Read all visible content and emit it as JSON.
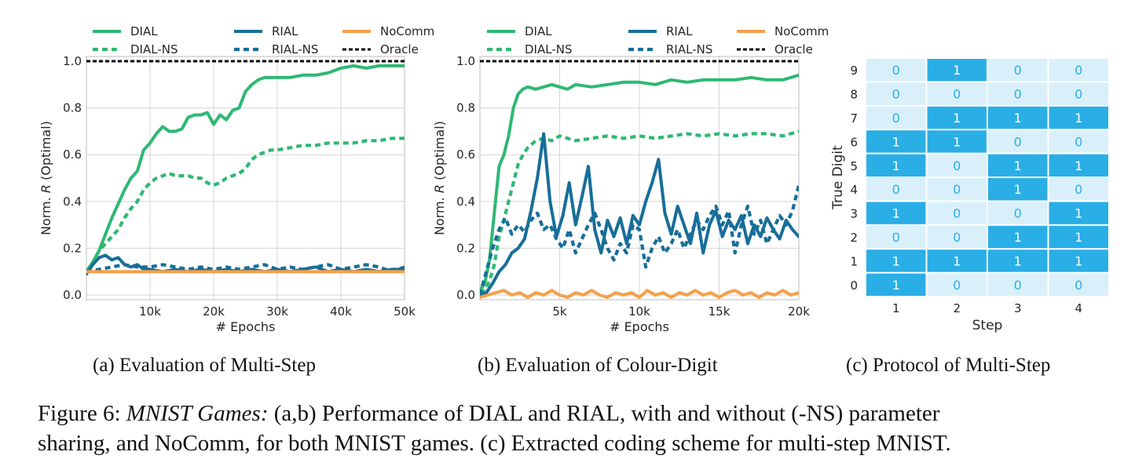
{
  "figure_caption": {
    "label": "Figure 6: ",
    "italic": "MNIST Games:",
    "line1_rest": " (a,b) Performance of DIAL and RIAL, with and without (-NS) parameter",
    "line2": "sharing, and NoComm, for both MNIST games. (c) Extracted coding scheme for multi-step MNIST."
  },
  "colors": {
    "DIAL": "#2eb873",
    "DIAL-NS": "#2eb873",
    "RIAL": "#176e99",
    "RIAL-NS": "#176e99",
    "NoComm": "#f5a04a",
    "Oracle": "#000000",
    "cell_on": "#2aaee6",
    "cell_off": "#d9f0fa",
    "grid": "#d5d5d5"
  },
  "legend_labels": [
    "DIAL",
    "RIAL",
    "NoComm",
    "DIAL-NS",
    "RIAL-NS",
    "Oracle"
  ],
  "chart_data": [
    {
      "id": "a",
      "type": "line",
      "caption": "(a) Evaluation of Multi-Step",
      "xlabel": "# Epochs",
      "ylabel": "Norm. R (Optimal)",
      "xlim": [
        0,
        50000
      ],
      "ylim": [
        -0.02,
        1.02
      ],
      "xticks": [
        10000,
        20000,
        30000,
        40000,
        50000
      ],
      "xtick_labels": [
        "10k",
        "20k",
        "30k",
        "40k",
        "50k"
      ],
      "yticks": [
        0.0,
        0.2,
        0.4,
        0.6,
        0.8,
        1.0
      ],
      "ytick_labels": [
        "0.0",
        "0.2",
        "0.4",
        "0.6",
        "0.8",
        "1.0"
      ],
      "grid": true,
      "legend_placement": "top",
      "series": [
        {
          "name": "DIAL",
          "style": "solid",
          "x": [
            0,
            1000,
            2000,
            3000,
            4000,
            5000,
            6000,
            7000,
            8000,
            9000,
            10000,
            11000,
            12000,
            13000,
            14000,
            15000,
            16000,
            17000,
            18000,
            19000,
            20000,
            21000,
            22000,
            23000,
            24000,
            25000,
            26000,
            27000,
            28000,
            29000,
            30000,
            32000,
            34000,
            36000,
            38000,
            40000,
            42000,
            44000,
            46000,
            48000,
            50000
          ],
          "y": [
            0.1,
            0.14,
            0.19,
            0.26,
            0.33,
            0.39,
            0.45,
            0.5,
            0.53,
            0.62,
            0.65,
            0.69,
            0.72,
            0.7,
            0.7,
            0.71,
            0.76,
            0.77,
            0.77,
            0.78,
            0.73,
            0.77,
            0.75,
            0.79,
            0.8,
            0.87,
            0.9,
            0.92,
            0.93,
            0.93,
            0.93,
            0.93,
            0.94,
            0.94,
            0.95,
            0.97,
            0.98,
            0.97,
            0.98,
            0.98,
            0.98
          ]
        },
        {
          "name": "DIAL-NS",
          "style": "dotted",
          "x": [
            0,
            1000,
            2000,
            3000,
            4000,
            5000,
            6000,
            7000,
            8000,
            9000,
            10000,
            11000,
            12000,
            13000,
            14000,
            15000,
            16000,
            17000,
            18000,
            19000,
            20000,
            21000,
            22000,
            23000,
            24000,
            25000,
            26000,
            27000,
            28000,
            29000,
            30000,
            32000,
            34000,
            36000,
            38000,
            40000,
            42000,
            44000,
            46000,
            48000,
            50000
          ],
          "y": [
            0.1,
            0.14,
            0.19,
            0.22,
            0.25,
            0.28,
            0.33,
            0.37,
            0.4,
            0.45,
            0.48,
            0.5,
            0.51,
            0.52,
            0.51,
            0.51,
            0.51,
            0.5,
            0.5,
            0.48,
            0.47,
            0.48,
            0.5,
            0.51,
            0.52,
            0.54,
            0.58,
            0.6,
            0.61,
            0.62,
            0.62,
            0.63,
            0.64,
            0.64,
            0.65,
            0.65,
            0.65,
            0.66,
            0.66,
            0.67,
            0.67
          ]
        },
        {
          "name": "RIAL",
          "style": "solid",
          "x": [
            0,
            1000,
            2000,
            3000,
            4000,
            5000,
            6000,
            7000,
            8000,
            9000,
            10000,
            12000,
            14000,
            16000,
            18000,
            20000,
            22000,
            24000,
            26000,
            28000,
            30000,
            32000,
            34000,
            36000,
            38000,
            40000,
            42000,
            44000,
            46000,
            48000,
            50000
          ],
          "y": [
            0.09,
            0.13,
            0.16,
            0.17,
            0.15,
            0.16,
            0.13,
            0.12,
            0.13,
            0.11,
            0.11,
            0.1,
            0.11,
            0.1,
            0.11,
            0.1,
            0.11,
            0.1,
            0.11,
            0.1,
            0.11,
            0.1,
            0.11,
            0.12,
            0.1,
            0.11,
            0.1,
            0.11,
            0.1,
            0.11,
            0.11
          ]
        },
        {
          "name": "RIAL-NS",
          "style": "dotted",
          "x": [
            0,
            2000,
            4000,
            6000,
            8000,
            10000,
            12000,
            14000,
            16000,
            18000,
            20000,
            22000,
            24000,
            26000,
            28000,
            30000,
            32000,
            34000,
            36000,
            38000,
            40000,
            42000,
            44000,
            46000,
            48000,
            50000
          ],
          "y": [
            0.1,
            0.11,
            0.12,
            0.13,
            0.12,
            0.12,
            0.13,
            0.12,
            0.11,
            0.12,
            0.11,
            0.12,
            0.11,
            0.12,
            0.13,
            0.11,
            0.12,
            0.11,
            0.12,
            0.13,
            0.11,
            0.12,
            0.13,
            0.12,
            0.1,
            0.12
          ]
        },
        {
          "name": "NoComm",
          "style": "solid",
          "x": [
            0,
            5000,
            10000,
            15000,
            20000,
            25000,
            30000,
            35000,
            40000,
            45000,
            50000
          ],
          "y": [
            0.1,
            0.1,
            0.1,
            0.1,
            0.1,
            0.1,
            0.1,
            0.1,
            0.1,
            0.1,
            0.1
          ]
        },
        {
          "name": "Oracle",
          "style": "dashed",
          "x": [
            0,
            50000
          ],
          "y": [
            1.0,
            1.0
          ]
        }
      ]
    },
    {
      "id": "b",
      "type": "line",
      "caption": "(b) Evaluation of Colour-Digit",
      "xlabel": "# Epochs",
      "ylabel": "Norm. R (Optimal)",
      "xlim": [
        0,
        20000
      ],
      "ylim": [
        -0.02,
        1.02
      ],
      "xticks": [
        5000,
        10000,
        15000,
        20000
      ],
      "xtick_labels": [
        "5k",
        "10k",
        "15k",
        "20k"
      ],
      "yticks": [
        0.0,
        0.2,
        0.4,
        0.6,
        0.8,
        1.0
      ],
      "ytick_labels": [
        "0.0",
        "0.2",
        "0.4",
        "0.6",
        "0.8",
        "1.0"
      ],
      "grid": true,
      "legend_placement": "top",
      "series": [
        {
          "name": "DIAL",
          "style": "solid",
          "x": [
            0,
            300,
            600,
            900,
            1200,
            1500,
            1800,
            2100,
            2400,
            2700,
            3000,
            3500,
            4000,
            4500,
            5000,
            5500,
            6000,
            7000,
            8000,
            9000,
            10000,
            11000,
            12000,
            13000,
            14000,
            15000,
            16000,
            17000,
            18000,
            19000,
            20000
          ],
          "y": [
            0.02,
            0.05,
            0.15,
            0.35,
            0.55,
            0.6,
            0.68,
            0.8,
            0.86,
            0.88,
            0.89,
            0.88,
            0.89,
            0.9,
            0.89,
            0.88,
            0.9,
            0.89,
            0.9,
            0.91,
            0.91,
            0.9,
            0.92,
            0.91,
            0.92,
            0.92,
            0.92,
            0.93,
            0.92,
            0.92,
            0.94
          ]
        },
        {
          "name": "DIAL-NS",
          "style": "dotted",
          "x": [
            0,
            300,
            600,
            900,
            1200,
            1500,
            1800,
            2100,
            2400,
            2700,
            3000,
            3500,
            4000,
            4500,
            5000,
            6000,
            7000,
            8000,
            9000,
            10000,
            11000,
            12000,
            13000,
            14000,
            15000,
            16000,
            17000,
            18000,
            19000,
            20000
          ],
          "y": [
            0.01,
            0.02,
            0.06,
            0.13,
            0.25,
            0.32,
            0.4,
            0.48,
            0.56,
            0.6,
            0.63,
            0.66,
            0.67,
            0.66,
            0.68,
            0.66,
            0.67,
            0.68,
            0.67,
            0.68,
            0.67,
            0.68,
            0.69,
            0.68,
            0.69,
            0.68,
            0.69,
            0.69,
            0.68,
            0.7
          ]
        },
        {
          "name": "RIAL",
          "style": "solid",
          "x": [
            0,
            400,
            800,
            1200,
            1600,
            2000,
            2400,
            2800,
            3200,
            3600,
            4000,
            4400,
            4800,
            5200,
            5600,
            6000,
            6400,
            6800,
            7200,
            7600,
            8000,
            8400,
            8800,
            9200,
            9600,
            10000,
            10400,
            10800,
            11200,
            11600,
            12000,
            12400,
            12800,
            13200,
            13600,
            14000,
            14400,
            14800,
            15200,
            15600,
            16000,
            16400,
            16800,
            17200,
            17600,
            18000,
            18400,
            18800,
            19200,
            19600,
            20000
          ],
          "y": [
            0.0,
            0.01,
            0.05,
            0.1,
            0.13,
            0.18,
            0.2,
            0.24,
            0.36,
            0.5,
            0.69,
            0.4,
            0.25,
            0.34,
            0.48,
            0.3,
            0.42,
            0.55,
            0.28,
            0.18,
            0.32,
            0.25,
            0.33,
            0.22,
            0.34,
            0.3,
            0.4,
            0.48,
            0.58,
            0.35,
            0.26,
            0.38,
            0.3,
            0.22,
            0.35,
            0.18,
            0.3,
            0.36,
            0.25,
            0.32,
            0.28,
            0.34,
            0.22,
            0.3,
            0.25,
            0.33,
            0.28,
            0.24,
            0.32,
            0.28,
            0.25
          ]
        },
        {
          "name": "RIAL-NS",
          "style": "dotted",
          "x": [
            0,
            400,
            800,
            1200,
            1600,
            2000,
            2400,
            2800,
            3200,
            3600,
            4000,
            4400,
            4800,
            5200,
            5600,
            6000,
            6400,
            6800,
            7200,
            7600,
            8000,
            8400,
            8800,
            9200,
            9600,
            10000,
            10400,
            10800,
            11200,
            11600,
            12000,
            12400,
            12800,
            13200,
            13600,
            14000,
            14400,
            14800,
            15200,
            15600,
            16000,
            16400,
            16800,
            17200,
            17600,
            18000,
            18400,
            18800,
            19200,
            19600,
            20000
          ],
          "y": [
            0.0,
            0.1,
            0.2,
            0.28,
            0.33,
            0.26,
            0.3,
            0.27,
            0.32,
            0.35,
            0.28,
            0.3,
            0.24,
            0.2,
            0.28,
            0.18,
            0.24,
            0.3,
            0.35,
            0.28,
            0.2,
            0.15,
            0.22,
            0.18,
            0.3,
            0.28,
            0.12,
            0.2,
            0.25,
            0.18,
            0.22,
            0.28,
            0.2,
            0.26,
            0.32,
            0.28,
            0.34,
            0.38,
            0.3,
            0.36,
            0.18,
            0.3,
            0.38,
            0.26,
            0.32,
            0.22,
            0.28,
            0.34,
            0.3,
            0.36,
            0.47
          ]
        },
        {
          "name": "NoComm",
          "style": "solid",
          "x": [
            0,
            500,
            1000,
            1500,
            2000,
            2500,
            3000,
            3500,
            4000,
            4500,
            5000,
            5500,
            6000,
            6500,
            7000,
            7500,
            8000,
            8500,
            9000,
            9500,
            10000,
            10500,
            11000,
            11500,
            12000,
            12500,
            13000,
            13500,
            14000,
            14500,
            15000,
            15500,
            16000,
            16500,
            17000,
            17500,
            18000,
            18500,
            19000,
            19500,
            20000
          ],
          "y": [
            -0.01,
            0.0,
            0.01,
            0.02,
            0.0,
            0.01,
            -0.01,
            0.01,
            0.0,
            0.02,
            0.0,
            -0.01,
            0.01,
            0.0,
            0.02,
            0.0,
            -0.01,
            0.01,
            0.0,
            0.01,
            -0.01,
            0.02,
            0.0,
            0.01,
            -0.01,
            0.01,
            0.0,
            0.02,
            0.0,
            0.01,
            -0.01,
            0.01,
            0.02,
            0.0,
            0.01,
            -0.01,
            0.01,
            0.0,
            0.02,
            0.0,
            0.01
          ]
        },
        {
          "name": "Oracle",
          "style": "dashed",
          "x": [
            0,
            20000
          ],
          "y": [
            1.0,
            1.0
          ]
        }
      ]
    },
    {
      "id": "c",
      "type": "heatmap",
      "caption": "(c) Protocol of Multi-Step",
      "xlabel": "Step",
      "ylabel": "True Digit",
      "x_categories": [
        "1",
        "2",
        "3",
        "4"
      ],
      "y_categories": [
        "9",
        "8",
        "7",
        "6",
        "5",
        "4",
        "3",
        "2",
        "1",
        "0"
      ],
      "values": [
        [
          0,
          1,
          0,
          0
        ],
        [
          0,
          0,
          0,
          0
        ],
        [
          0,
          1,
          1,
          1
        ],
        [
          1,
          1,
          0,
          0
        ],
        [
          1,
          0,
          1,
          1
        ],
        [
          0,
          0,
          1,
          0
        ],
        [
          1,
          0,
          0,
          1
        ],
        [
          0,
          0,
          1,
          1
        ],
        [
          1,
          1,
          1,
          1
        ],
        [
          1,
          0,
          0,
          0
        ]
      ]
    }
  ]
}
